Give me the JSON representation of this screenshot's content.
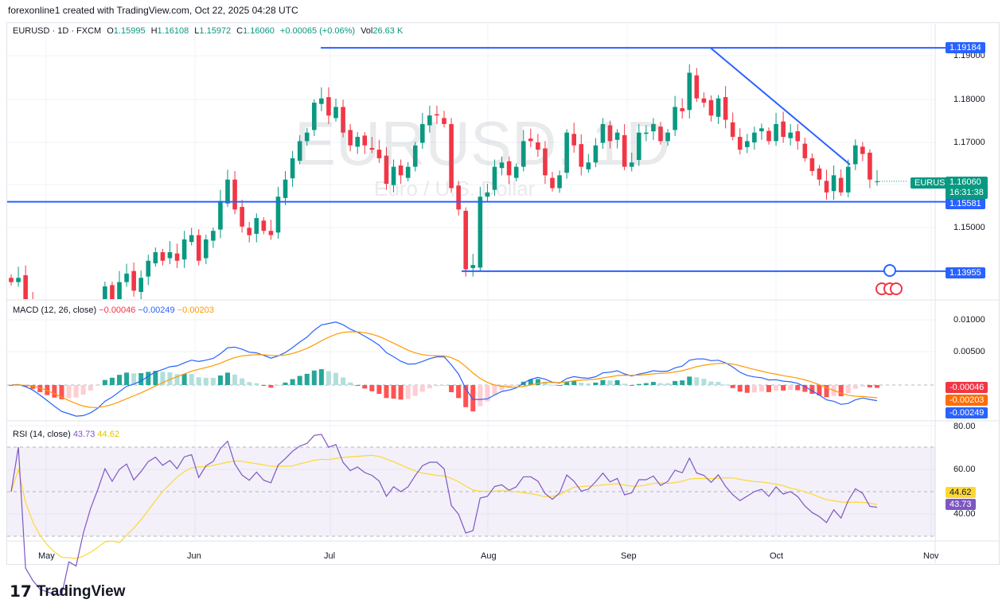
{
  "credit": "forexonline1 created with TradingView.com, Oct 22, 2025 04:28 UTC",
  "symbol": {
    "name": "EURUSD · 1D · FXCM",
    "o_label": "O",
    "o": "1.15995",
    "h_label": "H",
    "h": "1.16108",
    "l_label": "L",
    "l": "1.15972",
    "c_label": "C",
    "c": "1.16060",
    "change": "+0.00065 (+0.06%)",
    "vol_label": "Vol",
    "vol": "26.63 K"
  },
  "watermark": {
    "title": "EURUSD, 1D",
    "subtitle": "Euro / U.S. Dollar"
  },
  "price_axis": [
    "1.19000",
    "1.18000",
    "1.17000",
    "1.15000"
  ],
  "levels": [
    {
      "value": "1.19184"
    },
    {
      "value": "1.15581"
    },
    {
      "value": "1.13955"
    }
  ],
  "last_price": {
    "symbol": "EURUSD",
    "price": "1.16060",
    "countdown": "16:31:38"
  },
  "macd": {
    "title": "MACD (12, 26, close)",
    "hist": "−0.00046",
    "macd": "−0.00249",
    "signal": "−0.00203",
    "axis": [
      "0.01000",
      "0.00500"
    ],
    "tags": [
      "-0.00046",
      "-0.00203",
      "-0.00249"
    ]
  },
  "rsi": {
    "title": "RSI (14, close)",
    "rsi": "43.73",
    "ma": "44.62",
    "axis": [
      "80.00",
      "60.00",
      "40.00"
    ],
    "bands": [
      70,
      50,
      30
    ]
  },
  "months": [
    "May",
    "Jun",
    "Jul",
    "Aug",
    "Sep",
    "Oct",
    "Nov"
  ],
  "colors": {
    "up": "#089981",
    "down": "#f23645",
    "level": "#2962ff",
    "macd": "#2962ff",
    "signal": "#ff9800",
    "rsi": "#7e57c2",
    "rsi_ma": "#fdd835"
  },
  "footer": {
    "brand": "TradingView"
  },
  "chart_data": {
    "type": "candlestick",
    "ylim": [
      1.133,
      1.196
    ],
    "closes": [
      1.137,
      1.138,
      1.133,
      1.13,
      1.125,
      1.122,
      1.119,
      1.117,
      1.12,
      1.118,
      1.122,
      1.126,
      1.13,
      1.136,
      1.133,
      1.137,
      1.139,
      1.135,
      1.138,
      1.142,
      1.144,
      1.142,
      1.144,
      1.142,
      1.147,
      1.148,
      1.142,
      1.147,
      1.149,
      1.156,
      1.161,
      1.154,
      1.15,
      1.148,
      1.152,
      1.149,
      1.148,
      1.157,
      1.161,
      1.166,
      1.17,
      1.172,
      1.179,
      1.18,
      1.176,
      1.178,
      1.172,
      1.169,
      1.171,
      1.169,
      1.168,
      1.166,
      1.16,
      1.164,
      1.162,
      1.164,
      1.169,
      1.174,
      1.176,
      1.176,
      1.174,
      1.159,
      1.154,
      1.14,
      1.141,
      1.157,
      1.158,
      1.164,
      1.165,
      1.162,
      1.164,
      1.17,
      1.17,
      1.168,
      1.162,
      1.159,
      1.162,
      1.172,
      1.169,
      1.164,
      1.165,
      1.169,
      1.174,
      1.17,
      1.172,
      1.164,
      1.165,
      1.172,
      1.172,
      1.174,
      1.17,
      1.172,
      1.178,
      1.177,
      1.186,
      1.18,
      1.179,
      1.176,
      1.18,
      1.175,
      1.171,
      1.168,
      1.17,
      1.172,
      1.173,
      1.17,
      1.174,
      1.171,
      1.172,
      1.17,
      1.166,
      1.163,
      1.161,
      1.158,
      1.162,
      1.158,
      1.164,
      1.169,
      1.167,
      1.161,
      1.1606
    ],
    "horizontal_levels": [
      1.19184,
      1.15581,
      1.13955
    ],
    "trendline": [
      1.1918,
      1.1645
    ]
  }
}
